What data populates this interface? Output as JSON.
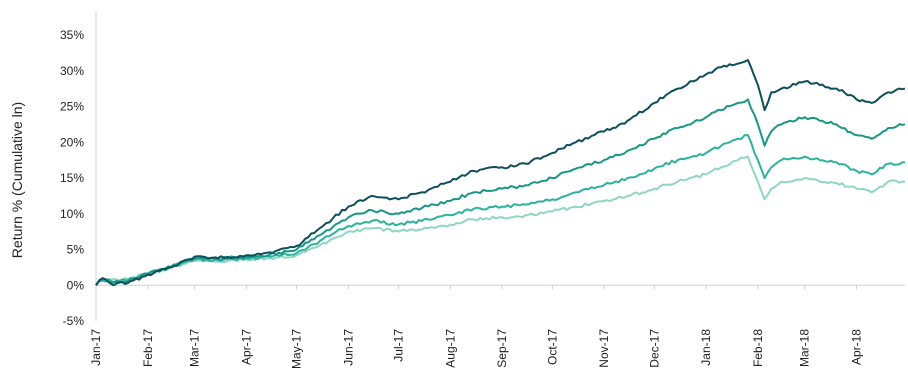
{
  "chart_data": {
    "type": "line",
    "ylabel": "Return % (Cumulative ln)",
    "xlabel": "",
    "title": "",
    "ylim": [
      -5,
      35
    ],
    "yticks": [
      -5,
      0,
      5,
      10,
      15,
      20,
      25,
      30,
      35
    ],
    "ytick_labels": [
      "-5%",
      "0%",
      "5%",
      "10%",
      "15%",
      "20%",
      "25%",
      "30%",
      "35%"
    ],
    "x_start": "2017-01-01",
    "x_end": "2018-04-30",
    "xticks": [
      "2017-01-01",
      "2017-02-01",
      "2017-03-01",
      "2017-04-01",
      "2017-05-01",
      "2017-06-01",
      "2017-07-01",
      "2017-08-01",
      "2017-09-01",
      "2017-10-01",
      "2017-11-01",
      "2017-12-01",
      "2018-01-01",
      "2018-02-01",
      "2018-03-01",
      "2018-04-01"
    ],
    "xtick_labels": [
      "Jan-17",
      "Feb-17",
      "Mar-17",
      "Apr-17",
      "May-17",
      "Jun-17",
      "Jul-17",
      "Aug-17",
      "Sep-17",
      "Oct-17",
      "Nov-17",
      "Dec-17",
      "Jan-18",
      "Feb-18",
      "Mar-18",
      "Apr-18"
    ],
    "grid": false,
    "legend": "none",
    "series": [
      {
        "color": "#0d4f5c",
        "x": [
          "2017-01-01",
          "2017-01-05",
          "2017-01-10",
          "2017-01-20",
          "2017-02-01",
          "2017-02-15",
          "2017-03-01",
          "2017-03-15",
          "2017-04-01",
          "2017-04-15",
          "2017-05-01",
          "2017-05-15",
          "2017-06-01",
          "2017-06-15",
          "2017-07-01",
          "2017-07-15",
          "2017-08-01",
          "2017-08-15",
          "2017-09-01",
          "2017-09-15",
          "2017-10-01",
          "2017-10-15",
          "2017-11-01",
          "2017-11-15",
          "2017-12-01",
          "2017-12-15",
          "2018-01-01",
          "2018-01-10",
          "2018-01-20",
          "2018-01-26",
          "2018-02-01",
          "2018-02-05",
          "2018-02-09",
          "2018-02-15",
          "2018-03-01",
          "2018-03-10",
          "2018-03-20",
          "2018-04-01",
          "2018-04-10",
          "2018-04-20",
          "2018-04-30"
        ],
        "values": [
          0,
          1.0,
          0.2,
          0.3,
          1.5,
          2.5,
          4.0,
          3.8,
          4.2,
          4.6,
          5.5,
          8.0,
          11.0,
          12.5,
          12.0,
          13.0,
          14.5,
          16.0,
          16.5,
          17.0,
          18.5,
          20.0,
          21.5,
          23.0,
          25.5,
          27.5,
          29.5,
          30.5,
          31.0,
          31.5,
          28.0,
          24.5,
          27.0,
          27.5,
          28.5,
          28.0,
          27.5,
          26.0,
          25.5,
          27.0,
          27.5
        ]
      },
      {
        "color": "#189787",
        "x": [
          "2017-01-01",
          "2017-01-05",
          "2017-01-10",
          "2017-01-20",
          "2017-02-01",
          "2017-02-15",
          "2017-03-01",
          "2017-03-15",
          "2017-04-01",
          "2017-04-15",
          "2017-05-01",
          "2017-05-15",
          "2017-06-01",
          "2017-06-15",
          "2017-07-01",
          "2017-07-15",
          "2017-08-01",
          "2017-08-15",
          "2017-09-01",
          "2017-09-15",
          "2017-10-01",
          "2017-10-15",
          "2017-11-01",
          "2017-11-15",
          "2017-12-01",
          "2017-12-15",
          "2018-01-01",
          "2018-01-10",
          "2018-01-20",
          "2018-01-26",
          "2018-02-01",
          "2018-02-05",
          "2018-02-09",
          "2018-02-15",
          "2018-03-01",
          "2018-03-10",
          "2018-03-20",
          "2018-04-01",
          "2018-04-10",
          "2018-04-20",
          "2018-04-30"
        ],
        "values": [
          0,
          0.8,
          0.4,
          0.5,
          1.6,
          2.6,
          3.8,
          3.7,
          4.0,
          4.3,
          5.0,
          7.0,
          9.5,
          10.5,
          10.0,
          10.8,
          11.8,
          13.0,
          13.5,
          14.0,
          15.0,
          16.3,
          17.5,
          18.8,
          20.5,
          22.0,
          23.5,
          24.5,
          25.5,
          26.0,
          22.5,
          19.5,
          21.5,
          22.5,
          23.5,
          23.0,
          22.5,
          21.0,
          20.5,
          22.0,
          22.5
        ]
      },
      {
        "color": "#2bb39d",
        "x": [
          "2017-01-01",
          "2017-01-05",
          "2017-01-10",
          "2017-01-20",
          "2017-02-01",
          "2017-02-15",
          "2017-03-01",
          "2017-03-15",
          "2017-04-01",
          "2017-04-15",
          "2017-05-01",
          "2017-05-15",
          "2017-06-01",
          "2017-06-15",
          "2017-07-01",
          "2017-07-15",
          "2017-08-01",
          "2017-08-15",
          "2017-09-01",
          "2017-09-15",
          "2017-10-01",
          "2017-10-15",
          "2017-11-01",
          "2017-11-15",
          "2017-12-01",
          "2017-12-15",
          "2018-01-01",
          "2018-01-10",
          "2018-01-20",
          "2018-01-26",
          "2018-02-01",
          "2018-02-05",
          "2018-02-09",
          "2018-02-15",
          "2018-03-01",
          "2018-03-10",
          "2018-03-20",
          "2018-04-01",
          "2018-04-10",
          "2018-04-20",
          "2018-04-30"
        ],
        "values": [
          0,
          0.7,
          0.6,
          0.7,
          1.6,
          2.6,
          3.6,
          3.5,
          3.8,
          4.0,
          4.5,
          6.2,
          8.3,
          9.0,
          8.5,
          9.0,
          9.8,
          10.7,
          11.0,
          11.3,
          12.0,
          13.0,
          14.0,
          15.0,
          16.3,
          17.5,
          18.5,
          19.5,
          20.5,
          21.0,
          17.5,
          15.0,
          16.5,
          17.5,
          18.0,
          17.5,
          17.2,
          16.0,
          15.5,
          17.0,
          17.2
        ]
      },
      {
        "color": "#8fd6c3",
        "x": [
          "2017-01-01",
          "2017-01-05",
          "2017-01-10",
          "2017-01-20",
          "2017-02-01",
          "2017-02-15",
          "2017-03-01",
          "2017-03-15",
          "2017-04-01",
          "2017-04-15",
          "2017-05-01",
          "2017-05-15",
          "2017-06-01",
          "2017-06-15",
          "2017-07-01",
          "2017-07-15",
          "2017-08-01",
          "2017-08-15",
          "2017-09-01",
          "2017-09-15",
          "2017-10-01",
          "2017-10-15",
          "2017-11-01",
          "2017-11-15",
          "2017-12-01",
          "2017-12-15",
          "2018-01-01",
          "2018-01-10",
          "2018-01-20",
          "2018-01-26",
          "2018-02-01",
          "2018-02-05",
          "2018-02-09",
          "2018-02-15",
          "2018-03-01",
          "2018-03-10",
          "2018-03-20",
          "2018-04-01",
          "2018-04-10",
          "2018-04-20",
          "2018-04-30"
        ],
        "values": [
          0,
          0.6,
          0.8,
          0.9,
          1.6,
          2.5,
          3.4,
          3.3,
          3.6,
          3.8,
          4.2,
          5.6,
          7.5,
          8.0,
          7.5,
          7.8,
          8.5,
          9.2,
          9.5,
          9.8,
          10.3,
          11.0,
          11.8,
          12.5,
          13.5,
          14.5,
          15.5,
          16.5,
          17.5,
          18.0,
          14.5,
          12.0,
          13.5,
          14.5,
          15.0,
          14.5,
          14.3,
          13.5,
          13.0,
          14.5,
          14.5
        ]
      }
    ]
  }
}
